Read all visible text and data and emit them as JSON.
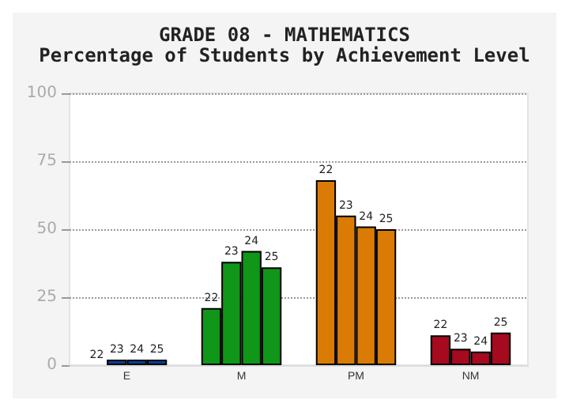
{
  "chart_data": {
    "type": "bar",
    "title": "GRADE 08 - MATHEMATICS",
    "subtitle": "Percentage of Students by Achievement Level",
    "categories": [
      "E",
      "M",
      "PM",
      "NM"
    ],
    "series": [
      {
        "name": "22",
        "colors": [
          "#0b3d91",
          "#109618",
          "#d97b05",
          "#a50a1e"
        ],
        "values": [
          0,
          21,
          68,
          11
        ]
      },
      {
        "name": "23",
        "colors": [
          "#0b3d91",
          "#109618",
          "#d97b05",
          "#a50a1e"
        ],
        "values": [
          2,
          38,
          55,
          6
        ]
      },
      {
        "name": "24",
        "colors": [
          "#0b3d91",
          "#109618",
          "#d97b05",
          "#a50a1e"
        ],
        "values": [
          2,
          42,
          51,
          5
        ]
      },
      {
        "name": "25",
        "colors": [
          "#0b3d91",
          "#109618",
          "#d97b05",
          "#a50a1e"
        ],
        "values": [
          2,
          36,
          50,
          12
        ]
      }
    ],
    "ylim": [
      0,
      100
    ],
    "yticks": [
      0,
      25,
      50,
      75,
      100
    ],
    "grid": "y"
  }
}
